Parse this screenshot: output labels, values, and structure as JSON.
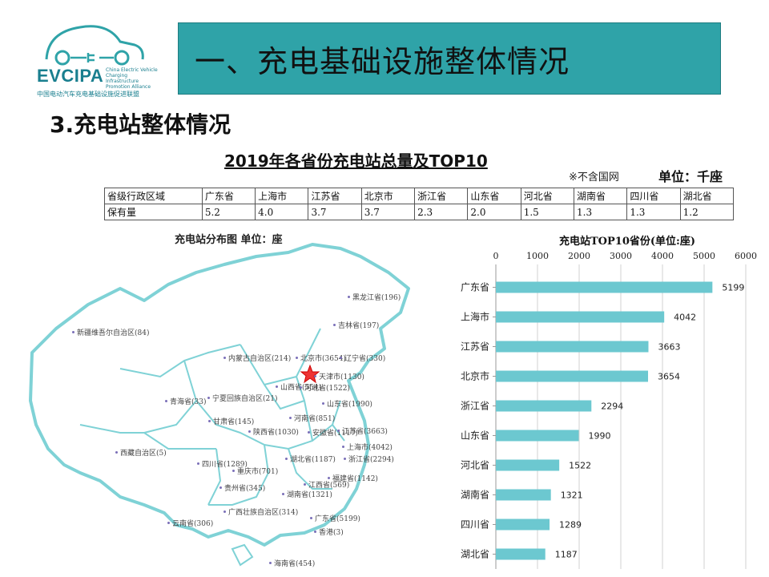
{
  "logo": {
    "brand": "EVCIPA",
    "english": "China Electric Vehicle Charging Infrastructure Promotion Alliance",
    "chinese": "中国电动汽车充电基础设施促进联盟"
  },
  "header": {
    "title": "一、充电基础设施整体情况"
  },
  "section": {
    "title": "3.充电站整体情况"
  },
  "table": {
    "title": "2019年各省份充电站总量及TOP10",
    "note": "※不含国网",
    "unit": "单位：千座",
    "header_label": "省级行政区域",
    "row_label": "保有量",
    "columns": [
      "广东省",
      "上海市",
      "江苏省",
      "北京市",
      "浙江省",
      "山东省",
      "河北省",
      "湖南省",
      "四川省",
      "湖北省"
    ],
    "values": [
      "5.2",
      "4.0",
      "3.7",
      "3.7",
      "2.3",
      "2.0",
      "1.5",
      "1.3",
      "1.3",
      "1.2"
    ]
  },
  "map": {
    "title": "充电站分布图  单位：座",
    "labels": [
      {
        "text": "黑龙江省(196)"
      },
      {
        "text": "吉林省(197)"
      },
      {
        "text": "新疆维吾尔自治区(84)"
      },
      {
        "text": "内蒙古自治区(214)"
      },
      {
        "text": "北京市(3654)"
      },
      {
        "text": "辽宁省(330)"
      },
      {
        "text": "天津市(1130)"
      },
      {
        "text": "山西省(554)"
      },
      {
        "text": "河北省(1522)"
      },
      {
        "text": "青海省(33)"
      },
      {
        "text": "宁夏回族自治区(21)"
      },
      {
        "text": "山东省(1990)"
      },
      {
        "text": "甘肃省(145)"
      },
      {
        "text": "河南省(851)"
      },
      {
        "text": "陕西省(1030)"
      },
      {
        "text": "安徽省(1117)"
      },
      {
        "text": "江苏省(3663)"
      },
      {
        "text": "上海市(4042)"
      },
      {
        "text": "西藏自治区(5)"
      },
      {
        "text": "湖北省(1187)"
      },
      {
        "text": "浙江省(2294)"
      },
      {
        "text": "四川省(1289)"
      },
      {
        "text": "重庆市(701)"
      },
      {
        "text": "福建省(1142)"
      },
      {
        "text": "贵州省(345)"
      },
      {
        "text": "江西省(569)"
      },
      {
        "text": "湖南省(1321)"
      },
      {
        "text": "广西壮族自治区(314)"
      },
      {
        "text": "云南省(306)"
      },
      {
        "text": "广东省(5199)"
      },
      {
        "text": "香港(3)"
      },
      {
        "text": "海南省(454)"
      }
    ]
  },
  "chart_data": {
    "type": "bar",
    "orientation": "horizontal",
    "title": "充电站TOP10省份(单位:座)",
    "categories": [
      "广东省",
      "上海市",
      "江苏省",
      "北京市",
      "浙江省",
      "山东省",
      "河北省",
      "湖南省",
      "四川省",
      "湖北省"
    ],
    "values": [
      5199,
      4042,
      3663,
      3654,
      2294,
      1990,
      1522,
      1321,
      1289,
      1187
    ],
    "xlim": [
      0,
      6000
    ],
    "xticks": [
      0,
      1000,
      2000,
      3000,
      4000,
      5000,
      6000
    ],
    "grid": true,
    "bar_color": "#6cc8d0"
  }
}
